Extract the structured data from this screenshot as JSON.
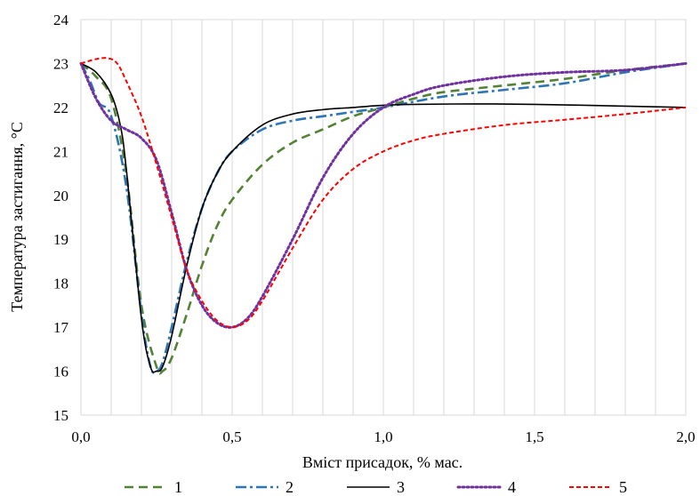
{
  "chart_data": {
    "type": "line",
    "title": "",
    "xlabel": "Вміст присадок, % мас.",
    "ylabel": "Температура застигання, °С",
    "xlim": [
      0,
      2
    ],
    "ylim": [
      15,
      24
    ],
    "grid": "vertical",
    "legend_position": "bottom",
    "x_ticks": [
      "0,0",
      "0,5",
      "1,0",
      "1,5",
      "2,0"
    ],
    "y_ticks": [
      "15",
      "16",
      "17",
      "18",
      "19",
      "20",
      "21",
      "22",
      "23",
      "24"
    ],
    "series": [
      {
        "name": "1",
        "color": "#548235",
        "style": "dash",
        "x": [
          0,
          0.05,
          0.1,
          0.15,
          0.2,
          0.25,
          0.27,
          0.3,
          0.35,
          0.4,
          0.45,
          0.5,
          0.6,
          0.7,
          0.8,
          0.9,
          1.0,
          1.1,
          1.2,
          1.4,
          1.6,
          1.8,
          2.0
        ],
        "y": [
          23,
          22.7,
          22.2,
          20.5,
          17.5,
          16.1,
          16.0,
          16.3,
          17.3,
          18.4,
          19.3,
          19.9,
          20.7,
          21.2,
          21.5,
          21.8,
          22.0,
          22.2,
          22.35,
          22.5,
          22.65,
          22.85,
          23.0
        ]
      },
      {
        "name": "2",
        "color": "#2E75B6",
        "style": "dashdot",
        "x": [
          0,
          0.03,
          0.06,
          0.1,
          0.15,
          0.2,
          0.23,
          0.25,
          0.27,
          0.3,
          0.35,
          0.4,
          0.45,
          0.5,
          0.6,
          0.7,
          0.8,
          0.9,
          1.0,
          1.2,
          1.4,
          1.6,
          1.8,
          2.0
        ],
        "y": [
          23,
          22.6,
          22.1,
          21.8,
          20.2,
          17.3,
          16.1,
          16.0,
          16.2,
          17.0,
          18.5,
          19.7,
          20.5,
          21.0,
          21.5,
          21.7,
          21.8,
          21.9,
          22.0,
          22.25,
          22.4,
          22.55,
          22.8,
          23.0
        ]
      },
      {
        "name": "3",
        "color": "#000000",
        "style": "solid",
        "x": [
          0,
          0.05,
          0.1,
          0.13,
          0.15,
          0.2,
          0.23,
          0.25,
          0.27,
          0.3,
          0.35,
          0.4,
          0.45,
          0.5,
          0.6,
          0.7,
          0.8,
          0.9,
          1.0,
          1.1,
          1.3,
          1.5,
          1.8,
          2.0
        ],
        "y": [
          23,
          22.8,
          22.3,
          21.6,
          20.6,
          17.2,
          16.1,
          16.0,
          16.1,
          16.8,
          18.4,
          19.7,
          20.5,
          21.0,
          21.6,
          21.85,
          21.95,
          22.0,
          22.05,
          22.07,
          22.08,
          22.07,
          22.03,
          22.0
        ]
      },
      {
        "name": "4",
        "color": "#7030A0",
        "style": "dot",
        "x": [
          0,
          0.05,
          0.1,
          0.15,
          0.2,
          0.25,
          0.3,
          0.35,
          0.4,
          0.45,
          0.5,
          0.55,
          0.6,
          0.7,
          0.8,
          0.9,
          1.0,
          1.1,
          1.2,
          1.4,
          1.6,
          1.8,
          2.0
        ],
        "y": [
          23,
          22.2,
          21.7,
          21.5,
          21.3,
          20.8,
          19.6,
          18.3,
          17.5,
          17.1,
          17.0,
          17.2,
          17.7,
          19.0,
          20.4,
          21.4,
          22.0,
          22.3,
          22.5,
          22.7,
          22.8,
          22.85,
          23.0
        ]
      },
      {
        "name": "5",
        "color": "#FF0000",
        "style": "shortdash",
        "x": [
          0,
          0.05,
          0.09,
          0.12,
          0.15,
          0.2,
          0.25,
          0.3,
          0.35,
          0.4,
          0.45,
          0.5,
          0.55,
          0.6,
          0.7,
          0.8,
          0.9,
          1.0,
          1.1,
          1.2,
          1.4,
          1.6,
          1.8,
          2.0
        ],
        "y": [
          23,
          23.1,
          23.12,
          23.0,
          22.6,
          21.8,
          20.7,
          19.5,
          18.3,
          17.6,
          17.15,
          17.0,
          17.15,
          17.6,
          18.8,
          19.9,
          20.6,
          21.0,
          21.25,
          21.4,
          21.6,
          21.72,
          21.85,
          22.0
        ]
      }
    ]
  }
}
